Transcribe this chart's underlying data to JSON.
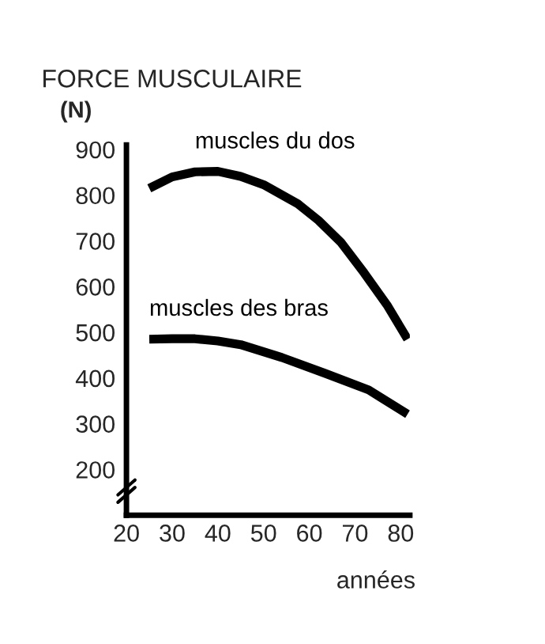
{
  "chart_data": {
    "type": "line",
    "title": "FORCE MUSCULAIRE",
    "ylabel": "(N)",
    "xlabel": "années",
    "series": [
      {
        "name": "muscles du dos",
        "color": "#000000",
        "x": [
          25,
          30,
          35,
          40,
          45,
          50,
          57.5,
          62,
          67,
          72,
          77,
          81.5
        ],
        "values": [
          815,
          840,
          851,
          852,
          841,
          823,
          781,
          745,
          696,
          630,
          560,
          485
        ]
      },
      {
        "name": "muscles des bras",
        "color": "#000000",
        "x": [
          25,
          30,
          35,
          40,
          45,
          54,
          63.5,
          73,
          81.5
        ],
        "values": [
          485,
          486,
          486,
          481,
          473,
          445,
          410,
          374,
          321
        ]
      }
    ],
    "xlim": [
      20,
      82
    ],
    "xticks": [
      20,
      30,
      40,
      50,
      60,
      70,
      80
    ],
    "ylim": [
      100,
      910
    ],
    "yticks": [
      200,
      300,
      400,
      500,
      600,
      700,
      800,
      900
    ],
    "grid": false,
    "legend": false,
    "marker": "none",
    "line_style": "solid"
  }
}
